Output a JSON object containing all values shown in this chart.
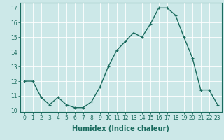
{
  "x": [
    0,
    1,
    2,
    3,
    4,
    5,
    6,
    7,
    8,
    9,
    10,
    11,
    12,
    13,
    14,
    15,
    16,
    17,
    18,
    19,
    20,
    21,
    22,
    23
  ],
  "y": [
    12.0,
    12.0,
    10.9,
    10.4,
    10.9,
    10.4,
    10.2,
    10.2,
    10.6,
    11.6,
    13.0,
    14.1,
    14.7,
    15.3,
    15.0,
    15.9,
    17.0,
    17.0,
    16.5,
    15.0,
    13.6,
    11.4,
    11.4,
    10.4
  ],
  "xlabel": "Humidex (Indice chaleur)",
  "ylim": [
    10,
    17
  ],
  "xlim": [
    0,
    23
  ],
  "yticks": [
    10,
    11,
    12,
    13,
    14,
    15,
    16,
    17
  ],
  "xticks": [
    0,
    1,
    2,
    3,
    4,
    5,
    6,
    7,
    8,
    9,
    10,
    11,
    12,
    13,
    14,
    15,
    16,
    17,
    18,
    19,
    20,
    21,
    22,
    23
  ],
  "line_color": "#1a6b5e",
  "marker": "+",
  "bg_color": "#cce8e8",
  "grid_color": "#ffffff",
  "tick_label_fontsize": 5.5,
  "xlabel_fontsize": 7.0
}
